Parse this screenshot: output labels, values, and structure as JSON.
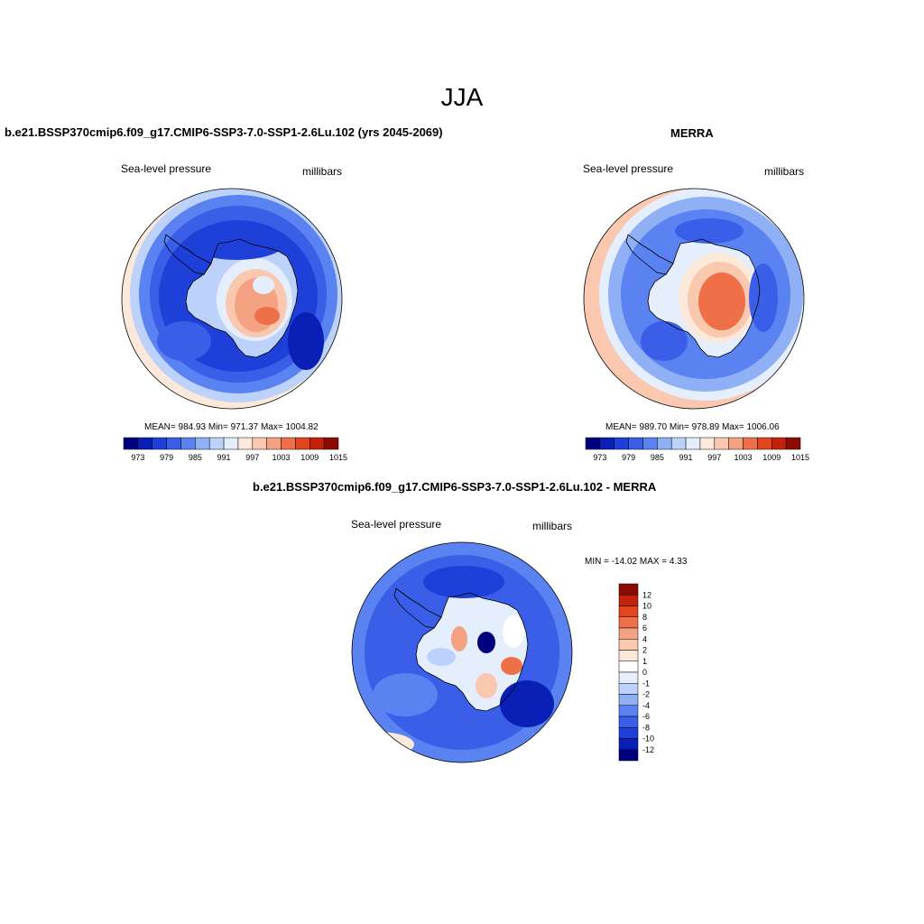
{
  "title": "JJA",
  "panels": {
    "model": {
      "title": "b.e21.BSSP370cmip6.f09_g17.CMIP6-SSP3-7.0-SSP1-2.6Lu.102 (yrs 2045-2069)",
      "left_label": "Sea-level pressure",
      "right_label": "millibars",
      "stats": "MEAN= 984.93   Min= 971.37   Max= 1004.82"
    },
    "obs": {
      "title": "MERRA",
      "left_label": "Sea-level pressure",
      "right_label": "millibars",
      "stats": "MEAN= 989.70   Min= 978.89   Max= 1006.06"
    },
    "diff": {
      "title": "b.e21.BSSP370cmip6.f09_g17.CMIP6-SSP3-7.0-SSP1-2.6Lu.102 - MERRA",
      "left_label": "Sea-level pressure",
      "right_label": "millibars",
      "stats": "MIN = -14.02 MAX =   4.33"
    }
  },
  "chart_data": [
    {
      "type": "heatmap",
      "projection": "south-polar-stereographic",
      "field": "Sea-level pressure",
      "units": "millibars",
      "mean": 984.93,
      "min": 971.37,
      "max": 1004.82,
      "colorbar": {
        "orientation": "horizontal",
        "tick_labels": [
          "973",
          "979",
          "985",
          "991",
          "997",
          "1003",
          "1009",
          "1015"
        ],
        "colors": [
          "#00007f",
          "#0a1fb5",
          "#1f3fd9",
          "#3a5ee8",
          "#5a82f0",
          "#8fb0f5",
          "#bcd2fa",
          "#e4eefc",
          "#fde9da",
          "#f9c8ae",
          "#f4a282",
          "#ee7048",
          "#e0451c",
          "#c4220b",
          "#8b0a04"
        ]
      }
    },
    {
      "type": "heatmap",
      "projection": "south-polar-stereographic",
      "field": "Sea-level pressure",
      "units": "millibars",
      "mean": 989.7,
      "min": 978.89,
      "max": 1006.06,
      "colorbar": {
        "orientation": "horizontal",
        "tick_labels": [
          "973",
          "979",
          "985",
          "991",
          "997",
          "1003",
          "1009",
          "1015"
        ],
        "colors": [
          "#00007f",
          "#0a1fb5",
          "#1f3fd9",
          "#3a5ee8",
          "#5a82f0",
          "#8fb0f5",
          "#bcd2fa",
          "#e4eefc",
          "#fde9da",
          "#f9c8ae",
          "#f4a282",
          "#ee7048",
          "#e0451c",
          "#c4220b",
          "#8b0a04"
        ]
      }
    },
    {
      "type": "heatmap",
      "projection": "south-polar-stereographic",
      "field": "Sea-level pressure",
      "units": "millibars",
      "min": -14.02,
      "max": 4.33,
      "colorbar": {
        "orientation": "vertical",
        "tick_labels": [
          "12",
          "10",
          "8",
          "6",
          "4",
          "2",
          "1",
          "0",
          "-1",
          "-2",
          "-4",
          "-6",
          "-8",
          "-10",
          "-12"
        ],
        "colors": [
          "#8b0a04",
          "#c4220b",
          "#e0451c",
          "#ee7048",
          "#f4a282",
          "#f9c8ae",
          "#fde9da",
          "#ffffff",
          "#e4eefc",
          "#bcd2fa",
          "#8fb0f5",
          "#5a82f0",
          "#3a5ee8",
          "#1f3fd9",
          "#0a1fb5",
          "#00007f"
        ]
      }
    }
  ]
}
